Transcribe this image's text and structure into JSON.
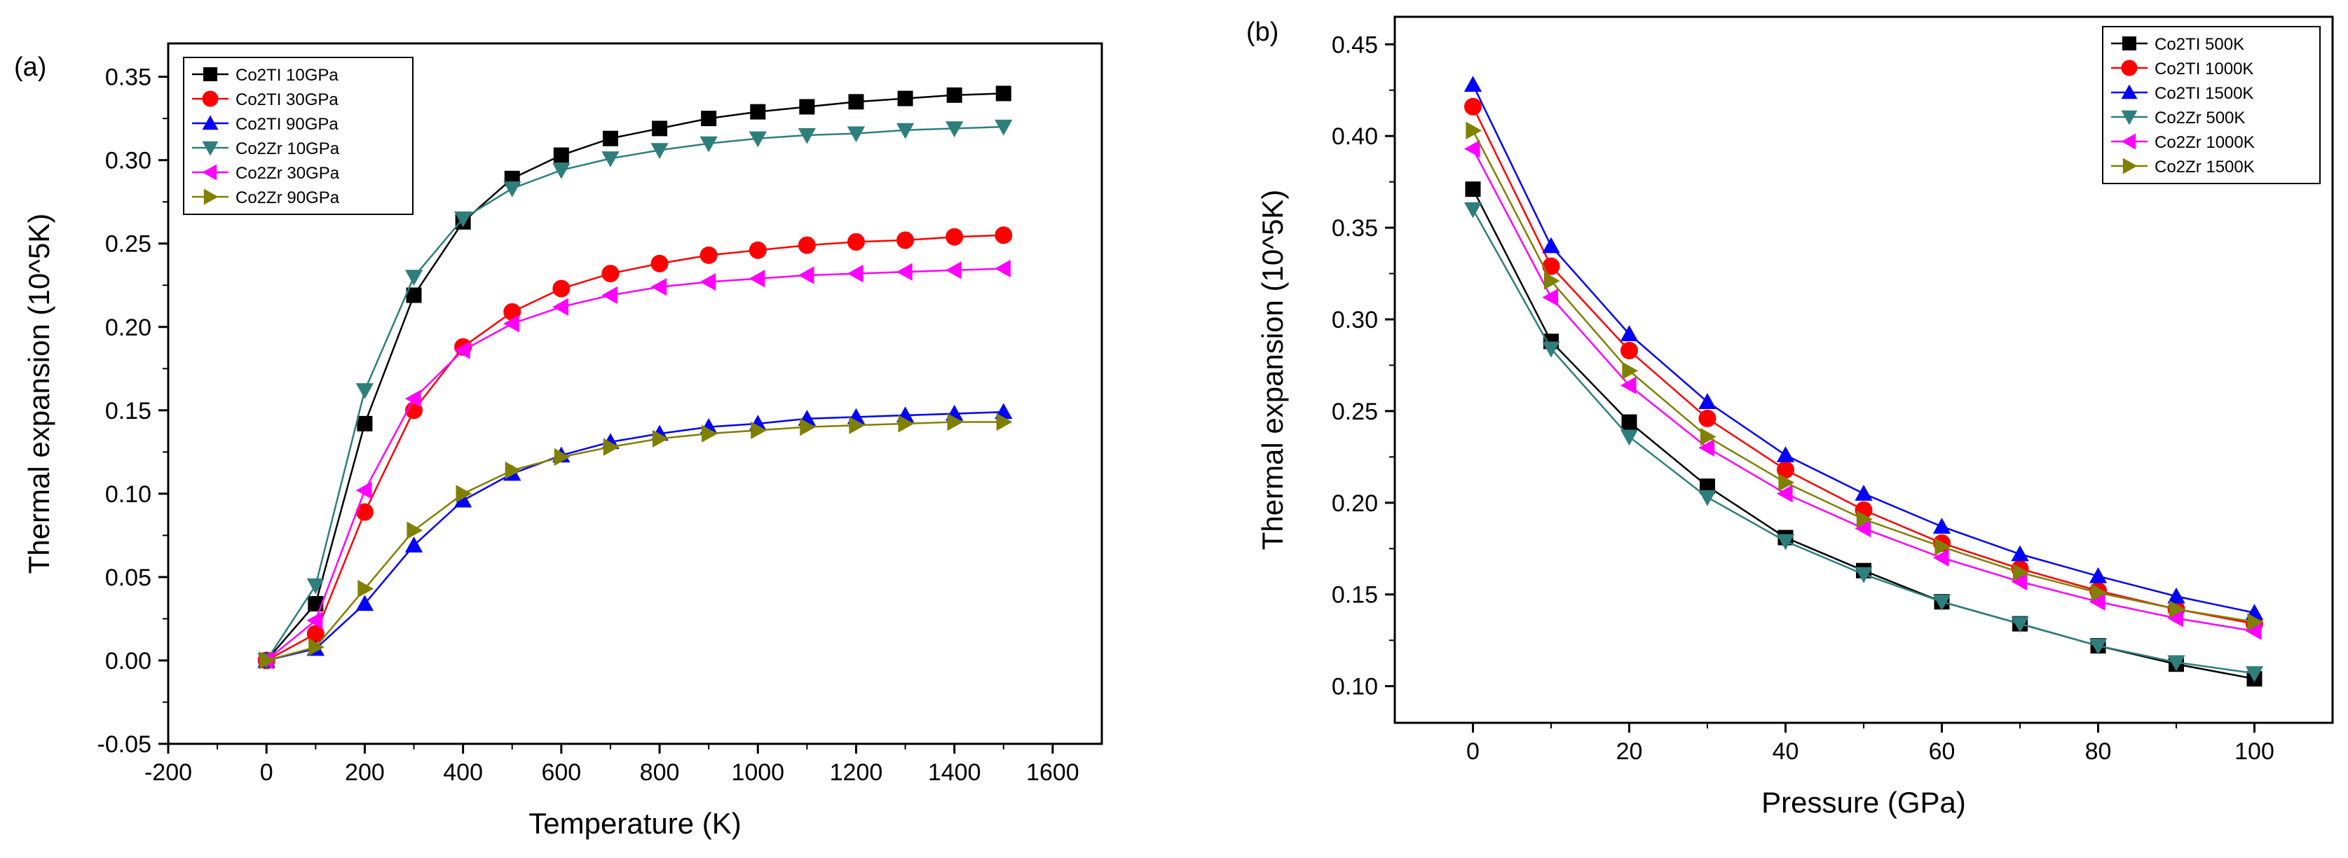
{
  "chart_data": [
    {
      "panel": "(a)",
      "type": "line",
      "xlabel": "Temperature (K)",
      "ylabel": "Thermal expansion (10^5K)",
      "xlim": [
        -200,
        1700
      ],
      "ylim": [
        -0.05,
        0.37
      ],
      "xticks": [
        -200,
        0,
        200,
        400,
        600,
        800,
        1000,
        1200,
        1400,
        1600
      ],
      "xtick_labels": [
        "-200",
        "0",
        "200",
        "400",
        "600",
        "800",
        "1000",
        "1200",
        "1400",
        "1600"
      ],
      "yticks": [
        -0.05,
        0,
        0.05,
        0.1,
        0.15,
        0.2,
        0.25,
        0.3,
        0.35
      ],
      "ytick_labels": [
        "-0.05",
        "0.00",
        "0.05",
        "0.10",
        "0.15",
        "0.20",
        "0.25",
        "0.30",
        "0.35"
      ],
      "legend_position": "top-left",
      "grid": false,
      "x": [
        0,
        100,
        200,
        300,
        400,
        500,
        600,
        700,
        800,
        900,
        1000,
        1100,
        1200,
        1300,
        1400,
        1500
      ],
      "series": [
        {
          "name": "Co2TI 10GPa",
          "color": "#000000",
          "marker": "square",
          "values": [
            0.0,
            0.034,
            0.142,
            0.219,
            0.263,
            0.289,
            0.303,
            0.313,
            0.319,
            0.325,
            0.329,
            0.332,
            0.335,
            0.337,
            0.339,
            0.34
          ]
        },
        {
          "name": "Co2TI 30GPa",
          "color": "#ff0000",
          "marker": "circle",
          "values": [
            0.0,
            0.016,
            0.089,
            0.15,
            0.188,
            0.209,
            0.223,
            0.232,
            0.238,
            0.243,
            0.246,
            0.249,
            0.251,
            0.252,
            0.254,
            0.255
          ]
        },
        {
          "name": "Co2TI 90GPa",
          "color": "#0000ff",
          "marker": "triangle-up",
          "values": [
            0.0,
            0.007,
            0.034,
            0.069,
            0.096,
            0.112,
            0.123,
            0.131,
            0.136,
            0.14,
            0.142,
            0.145,
            0.146,
            0.147,
            0.148,
            0.149
          ]
        },
        {
          "name": "Co2Zr 10GPa",
          "color": "#2e7f7c",
          "marker": "triangle-down",
          "values": [
            0.0,
            0.045,
            0.162,
            0.23,
            0.265,
            0.283,
            0.294,
            0.301,
            0.306,
            0.31,
            0.313,
            0.315,
            0.316,
            0.318,
            0.319,
            0.32
          ]
        },
        {
          "name": "Co2Zr 30GPa",
          "color": "#ff00ff",
          "marker": "triangle-left",
          "values": [
            0.0,
            0.024,
            0.102,
            0.157,
            0.186,
            0.202,
            0.212,
            0.219,
            0.224,
            0.227,
            0.229,
            0.231,
            0.232,
            0.233,
            0.234,
            0.235
          ]
        },
        {
          "name": "Co2Zr 90GPa",
          "color": "#808000",
          "marker": "triangle-right",
          "values": [
            0.0,
            0.008,
            0.043,
            0.078,
            0.1,
            0.114,
            0.122,
            0.128,
            0.133,
            0.136,
            0.138,
            0.14,
            0.141,
            0.142,
            0.143,
            0.143
          ]
        }
      ]
    },
    {
      "panel": "(b)",
      "type": "line",
      "xlabel": "Pressure (GPa)",
      "ylabel": "Thermal expansion (10^5K)",
      "xlim": [
        -10,
        110
      ],
      "ylim": [
        0.08,
        0.465
      ],
      "xticks": [
        0,
        20,
        40,
        60,
        80,
        100
      ],
      "xtick_labels": [
        "0",
        "20",
        "40",
        "60",
        "80",
        "100"
      ],
      "yticks": [
        0.1,
        0.15,
        0.2,
        0.25,
        0.3,
        0.35,
        0.4,
        0.45
      ],
      "ytick_labels": [
        "0.10",
        "0.15",
        "0.20",
        "0.25",
        "0.30",
        "0.35",
        "0.40",
        "0.45"
      ],
      "legend_position": "top-right",
      "grid": false,
      "x": [
        0,
        10,
        20,
        30,
        40,
        50,
        60,
        70,
        80,
        90,
        100
      ],
      "series": [
        {
          "name": "Co2TI 500K",
          "color": "#000000",
          "marker": "square",
          "values": [
            0.371,
            0.288,
            0.244,
            0.209,
            0.181,
            0.163,
            0.146,
            0.134,
            0.122,
            0.112,
            0.104
          ]
        },
        {
          "name": "Co2TI 1000K",
          "color": "#ff0000",
          "marker": "circle",
          "values": [
            0.416,
            0.329,
            0.283,
            0.246,
            0.218,
            0.196,
            0.178,
            0.164,
            0.152,
            0.142,
            0.134
          ]
        },
        {
          "name": "Co2TI 1500K",
          "color": "#0000ff",
          "marker": "triangle-up",
          "values": [
            0.428,
            0.34,
            0.292,
            0.255,
            0.226,
            0.205,
            0.187,
            0.172,
            0.16,
            0.149,
            0.14
          ]
        },
        {
          "name": "Co2Zr 500K",
          "color": "#2e7f7c",
          "marker": "triangle-down",
          "values": [
            0.36,
            0.284,
            0.236,
            0.203,
            0.179,
            0.161,
            0.146,
            0.134,
            0.122,
            0.113,
            0.107
          ]
        },
        {
          "name": "Co2Zr 1000K",
          "color": "#ff00ff",
          "marker": "triangle-left",
          "values": [
            0.393,
            0.312,
            0.264,
            0.23,
            0.205,
            0.186,
            0.17,
            0.157,
            0.146,
            0.137,
            0.13
          ]
        },
        {
          "name": "Co2Zr 1500K",
          "color": "#808000",
          "marker": "triangle-right",
          "values": [
            0.403,
            0.321,
            0.272,
            0.236,
            0.211,
            0.191,
            0.176,
            0.162,
            0.151,
            0.142,
            0.135
          ]
        }
      ]
    }
  ]
}
